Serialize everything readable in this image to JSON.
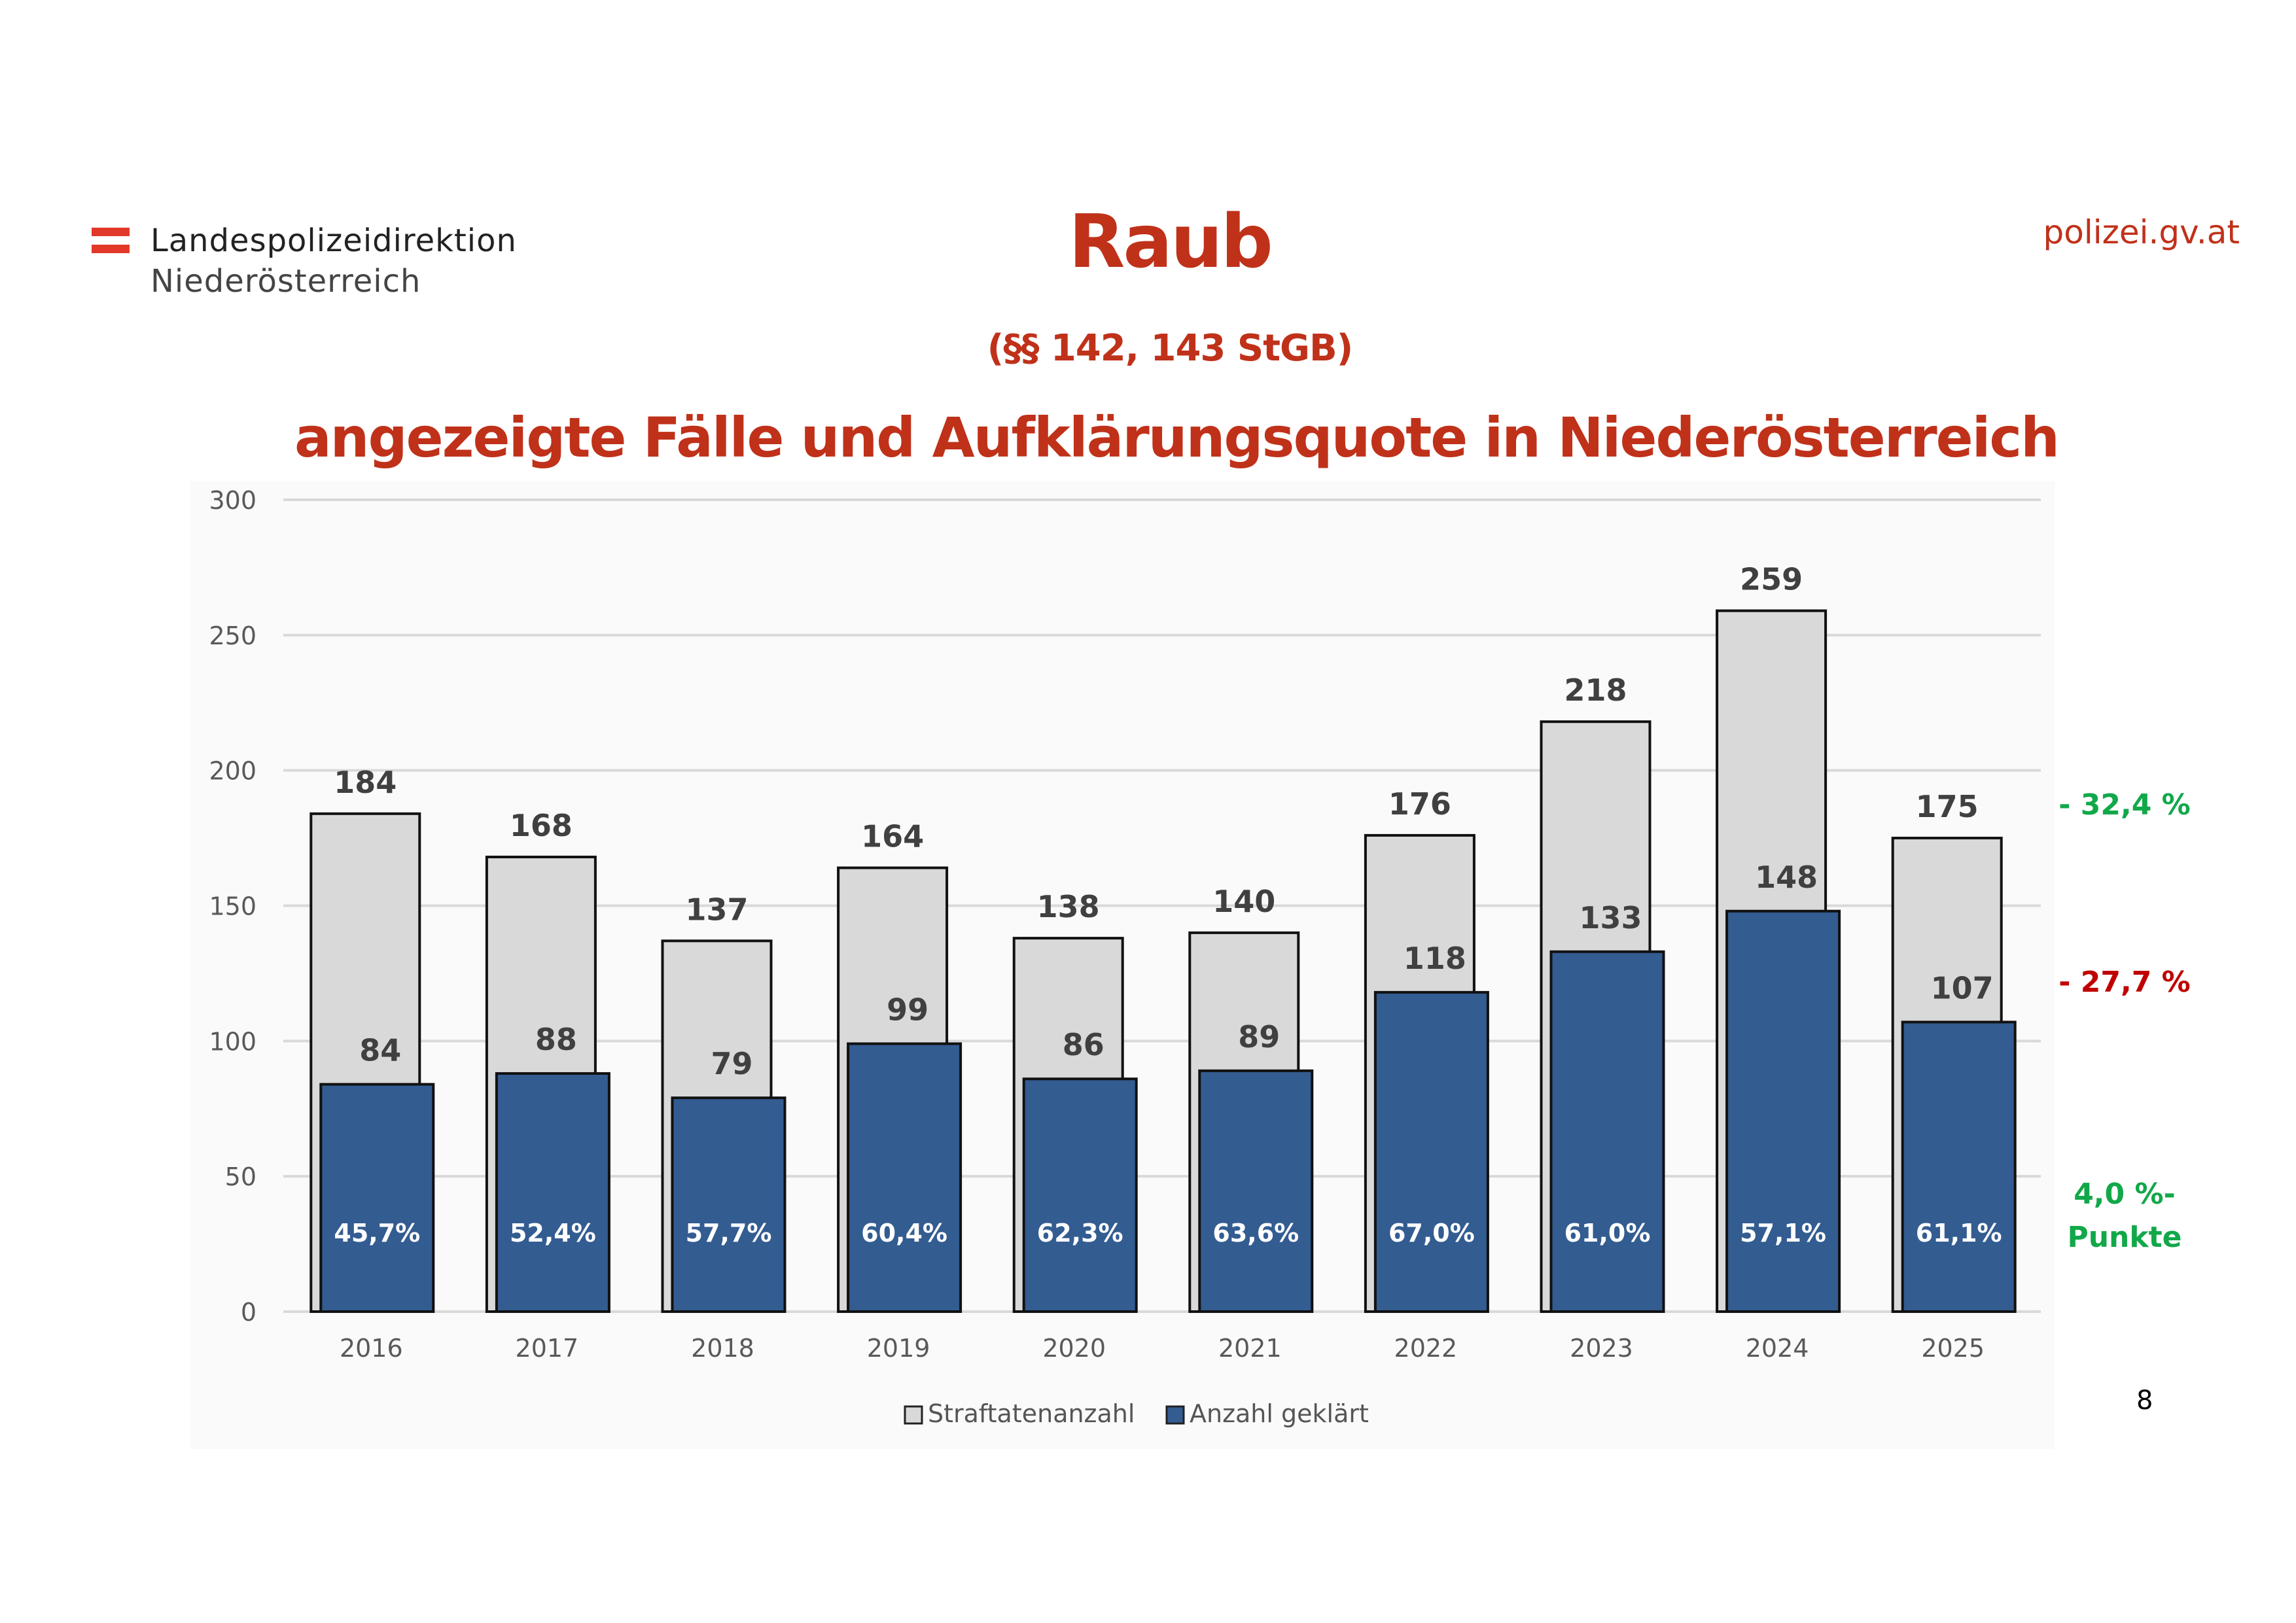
{
  "header": {
    "logo_line1": "Landespolizeidirektion",
    "logo_line2": "Niederösterreich",
    "site": "polizei.gv.at",
    "title": "Raub",
    "subtitle": "(§§ 142, 143 StGB)",
    "main_title": "angezeigte Fälle und Aufklärungsquote in Niederösterreich"
  },
  "annotations": {
    "total_change": "- 32,4 %",
    "solved_change": "- 27,7 %",
    "rate_change_line1": "4,0 %-",
    "rate_change_line2": "Punkte"
  },
  "page_number": "8",
  "colors": {
    "title": "#c0311a",
    "total_bar": "#d9d9d9",
    "solved_bar": "#335c91",
    "positive": "#12a84a",
    "negative": "#c00000"
  },
  "chart_data": {
    "type": "bar",
    "categories": [
      "2016",
      "2017",
      "2018",
      "2019",
      "2020",
      "2021",
      "2022",
      "2023",
      "2024",
      "2025"
    ],
    "series": [
      {
        "name": "Straftatenanzahl",
        "values": [
          184,
          168,
          137,
          164,
          138,
          140,
          176,
          218,
          259,
          175
        ]
      },
      {
        "name": "Anzahl geklärt",
        "values": [
          84,
          88,
          79,
          99,
          86,
          89,
          118,
          133,
          148,
          107
        ]
      }
    ],
    "rate_labels": [
      "45,7%",
      "52,4%",
      "57,7%",
      "60,4%",
      "62,3%",
      "63,6%",
      "67,0%",
      "61,0%",
      "57,1%",
      "61,1%"
    ],
    "yticks": [
      0,
      50,
      100,
      150,
      200,
      250,
      300
    ],
    "ylim": [
      0,
      300
    ],
    "grid": true,
    "legend": "bottom"
  }
}
